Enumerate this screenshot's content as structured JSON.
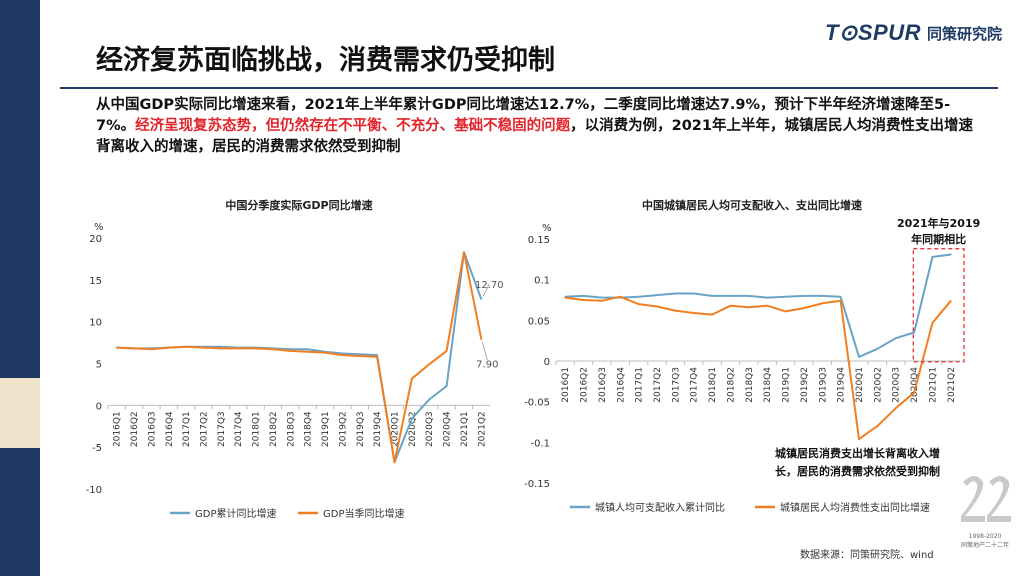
{
  "logo": {
    "brand": "T⊙SPUR",
    "name_cn": "同策研究院"
  },
  "title": "经济复苏面临挑战，消费需求仍受抑制",
  "paragraph": {
    "part1": "从中国GDP实际同比增速来看，2021年上半年累计GDP同比增速达12.7%，二季度同比增速达7.9%，预计下半年经济增速降至5-7%。",
    "part2_highlight": "经济呈现复苏态势，但仍然存在不平衡、不充分、基础不稳固的问题",
    "part3": "，以消费为例，2021年上半年，城镇居民人均消费性支出增速背离收入的增速，居民的消费需求依然受到抑制"
  },
  "colors": {
    "navy": "#1f3a63",
    "series_blue": "#6aa3c8",
    "series_orange": "#f07f22",
    "highlight_red": "#e0242a"
  },
  "chart_data": [
    {
      "type": "line",
      "title": "中国分季度实际GDP同比增速",
      "ylabel": "%",
      "ylim": [
        -10,
        20
      ],
      "yticks": [
        -10,
        -5,
        0,
        5,
        10,
        15,
        20
      ],
      "categories": [
        "2016Q1",
        "2016Q2",
        "2016Q3",
        "2016Q4",
        "2017Q1",
        "2017Q2",
        "2017Q3",
        "2017Q4",
        "2018Q1",
        "2018Q2",
        "2018Q3",
        "2018Q4",
        "2019Q1",
        "2019Q2",
        "2019Q3",
        "2019Q4",
        "2020Q1",
        "2020Q2",
        "2020Q3",
        "2020Q4",
        "2021Q1",
        "2021Q2"
      ],
      "series": [
        {
          "name": "GDP累计同比增速",
          "color": "#6aa3c8",
          "values": [
            6.9,
            6.8,
            6.8,
            6.9,
            7.0,
            7.0,
            7.0,
            6.9,
            6.9,
            6.8,
            6.7,
            6.7,
            6.4,
            6.2,
            6.1,
            6.0,
            -6.8,
            -1.6,
            0.7,
            2.3,
            18.3,
            12.7
          ]
        },
        {
          "name": "GDP当季同比增速",
          "color": "#f07f22",
          "values": [
            6.9,
            6.8,
            6.7,
            6.9,
            7.0,
            6.9,
            6.8,
            6.8,
            6.8,
            6.7,
            6.5,
            6.4,
            6.3,
            6.0,
            5.9,
            5.8,
            -6.8,
            3.2,
            4.9,
            6.5,
            18.3,
            7.9
          ]
        }
      ],
      "annotations": [
        {
          "label": "12.70",
          "category": "2021Q2",
          "value": 12.7
        },
        {
          "label": "7.90",
          "category": "2021Q2",
          "value": 7.9
        }
      ],
      "legend_position": "bottom"
    },
    {
      "type": "line",
      "title": "中国城镇居民人均可支配收入、支出同比增速",
      "ylabel": "%",
      "ylim": [
        -0.15,
        0.15
      ],
      "yticks": [
        -0.15,
        -0.1,
        -0.05,
        0,
        0.05,
        0.1,
        0.15
      ],
      "ytick_labels": [
        "-0.15",
        "-0.1",
        "-0.05",
        "0",
        "0.05",
        "0.1",
        "0.15"
      ],
      "categories": [
        "2016Q1",
        "2016Q2",
        "2016Q3",
        "2016Q4",
        "2017Q1",
        "2017Q2",
        "2017Q3",
        "2017Q4",
        "2018Q1",
        "2018Q2",
        "2018Q3",
        "2018Q4",
        "2019Q1",
        "2019Q2",
        "2019Q3",
        "2019Q4",
        "2020Q1",
        "2020Q2",
        "2020Q3",
        "2020Q4",
        "2021Q1",
        "2021Q2"
      ],
      "series": [
        {
          "name": "城镇人均可支配收入累计同比",
          "color": "#6aa3c8",
          "values": [
            0.079,
            0.08,
            0.078,
            0.078,
            0.079,
            0.081,
            0.083,
            0.083,
            0.08,
            0.08,
            0.08,
            0.078,
            0.079,
            0.08,
            0.08,
            0.079,
            0.005,
            0.015,
            0.028,
            0.035,
            0.128,
            0.131
          ]
        },
        {
          "name": "城镇居民人均消费性支出同比增速",
          "color": "#f07f22",
          "values": [
            0.078,
            0.075,
            0.074,
            0.079,
            0.07,
            0.067,
            0.062,
            0.059,
            0.057,
            0.068,
            0.066,
            0.068,
            0.061,
            0.065,
            0.071,
            0.074,
            -0.096,
            -0.08,
            -0.058,
            -0.039,
            0.047,
            0.074
          ]
        }
      ],
      "box_annotation": {
        "label_line1": "2021年与2019",
        "label_line2": "年同期相比",
        "categories": [
          "2021Q1",
          "2021Q2"
        ]
      },
      "text_annotation": {
        "line1": "城镇居民消费支出增长背离收入增",
        "line2": "长，居民的消费需求依然受到抑制"
      },
      "legend_position": "bottom"
    }
  ],
  "source": "数据来源：同策研究院、wind",
  "badge": {
    "years": "1998-2020",
    "caption": "同策地产二十二年"
  }
}
